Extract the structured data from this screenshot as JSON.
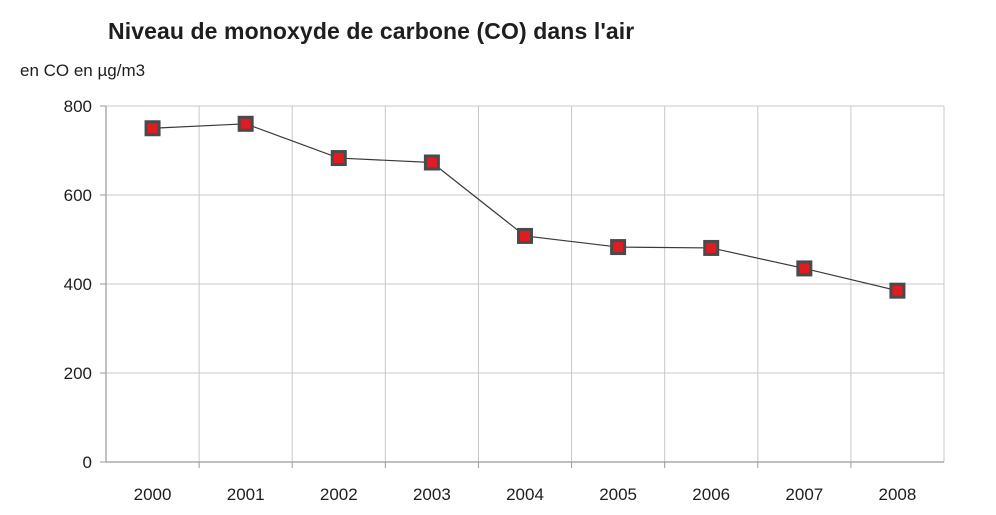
{
  "chart_data": {
    "type": "line",
    "title": "Niveau de monoxyde de carbone (CO) dans l'air",
    "ylabel": "en CO en µg/m3",
    "xlabel": "",
    "categories": [
      "2000",
      "2001",
      "2002",
      "2003",
      "2004",
      "2005",
      "2006",
      "2007",
      "2008"
    ],
    "series": [
      {
        "values": [
          750,
          760,
          683,
          673,
          508,
          483,
          481,
          435,
          385
        ]
      }
    ],
    "ylim": [
      0,
      800
    ],
    "yticks": [
      0,
      200,
      400,
      600,
      800
    ],
    "grid": true,
    "legend": "none",
    "colors": {
      "line": "#3a3a3a",
      "marker_fill": "#e11b22",
      "marker_border": "#4a4a4a",
      "grid": "#c8c8c8",
      "axis": "#9a9a9a"
    }
  }
}
